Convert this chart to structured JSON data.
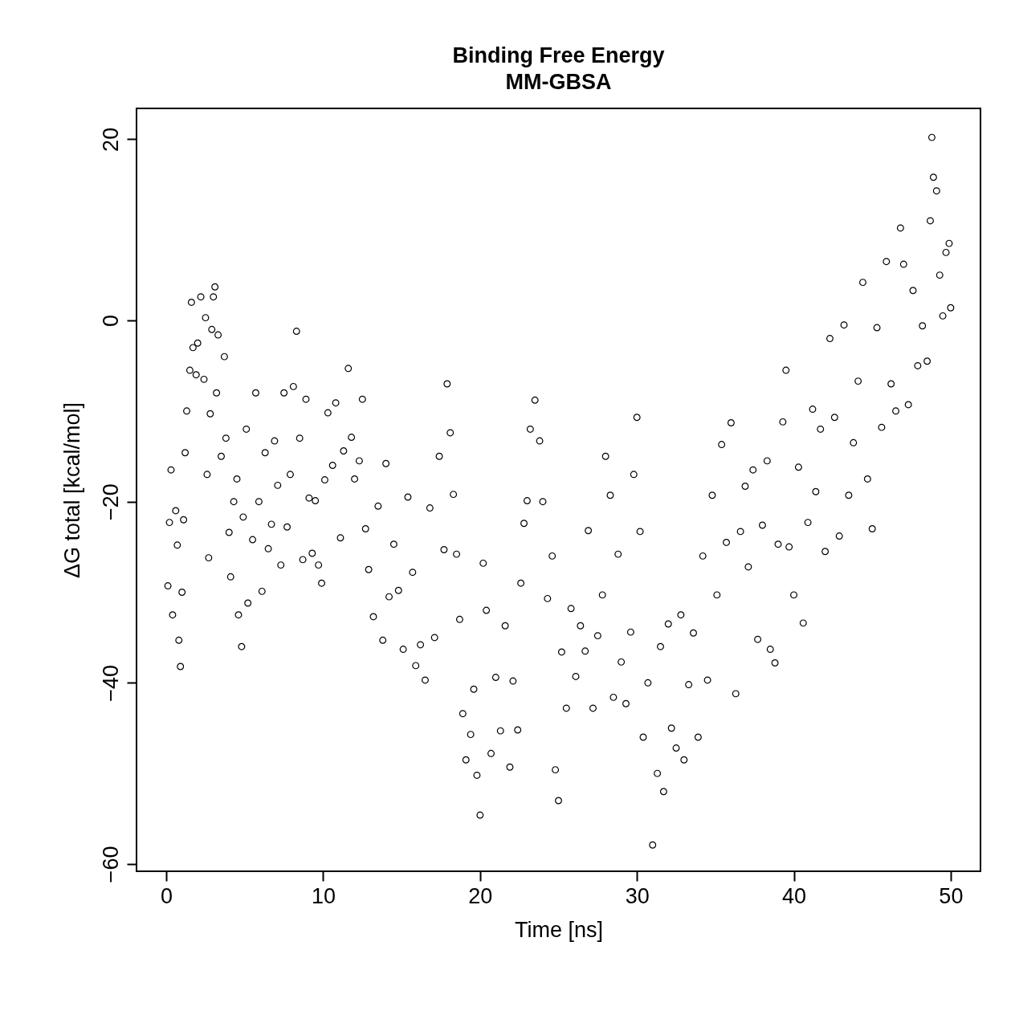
{
  "chart_data": {
    "type": "scatter",
    "title": "Binding Free Energy",
    "subtitle": "MM-GBSA",
    "xlabel": "Time [ns]",
    "ylabel": "ΔG total [kcal/mol]",
    "xlim": [
      -1.9,
      51.9
    ],
    "ylim": [
      -60.8,
      23.4
    ],
    "xticks": [
      0,
      10,
      20,
      30,
      40,
      50
    ],
    "yticks": [
      -60,
      -40,
      -20,
      0,
      20
    ],
    "marker": "circle",
    "series": [
      {
        "color": "#000000",
        "x": [
          0.1,
          0.2,
          0.3,
          0.4,
          0.6,
          0.7,
          0.8,
          0.9,
          1.0,
          1.1,
          1.2,
          1.3,
          1.5,
          1.6,
          1.7,
          1.9,
          2.0,
          2.2,
          2.4,
          2.5,
          2.6,
          2.7,
          2.8,
          2.9,
          3.0,
          3.1,
          3.2,
          3.3,
          3.5,
          3.7,
          3.8,
          4.0,
          4.1,
          4.3,
          4.5,
          4.6,
          4.8,
          4.9,
          5.1,
          5.2,
          5.5,
          5.7,
          5.9,
          6.1,
          6.3,
          6.5,
          6.7,
          6.9,
          7.1,
          7.3,
          7.5,
          7.7,
          7.9,
          8.1,
          8.3,
          8.5,
          8.7,
          8.9,
          9.1,
          9.3,
          9.5,
          9.7,
          9.9,
          10.1,
          10.3,
          10.6,
          10.8,
          11.1,
          11.3,
          11.6,
          11.8,
          12.0,
          12.3,
          12.5,
          12.7,
          12.9,
          13.2,
          13.5,
          13.8,
          14.0,
          14.2,
          14.5,
          14.8,
          15.1,
          15.4,
          15.7,
          15.9,
          16.2,
          16.5,
          16.8,
          17.1,
          17.4,
          17.7,
          17.9,
          18.1,
          18.3,
          18.5,
          18.7,
          18.9,
          19.1,
          19.4,
          19.6,
          19.8,
          20.0,
          20.2,
          20.4,
          20.7,
          21.0,
          21.3,
          21.6,
          21.9,
          22.1,
          22.4,
          22.6,
          22.8,
          23.0,
          23.2,
          23.5,
          23.8,
          24.0,
          24.3,
          24.6,
          24.8,
          25.0,
          25.2,
          25.5,
          25.8,
          26.1,
          26.4,
          26.7,
          26.9,
          27.2,
          27.5,
          27.8,
          28.0,
          28.3,
          28.5,
          28.8,
          29.0,
          29.3,
          29.6,
          29.8,
          30.0,
          30.2,
          30.4,
          30.7,
          31.0,
          31.3,
          31.5,
          31.7,
          32.0,
          32.2,
          32.5,
          32.8,
          33.0,
          33.3,
          33.6,
          33.9,
          34.2,
          34.5,
          34.8,
          35.1,
          35.4,
          35.7,
          36.0,
          36.3,
          36.6,
          36.9,
          37.1,
          37.4,
          37.7,
          38.0,
          38.3,
          38.5,
          38.8,
          39.0,
          39.3,
          39.5,
          39.7,
          40.0,
          40.3,
          40.6,
          40.9,
          41.2,
          41.4,
          41.7,
          42.0,
          42.3,
          42.6,
          42.9,
          43.2,
          43.5,
          43.8,
          44.1,
          44.4,
          44.7,
          45.0,
          45.3,
          45.6,
          45.9,
          46.2,
          46.5,
          46.8,
          47.0,
          47.3,
          47.6,
          47.9,
          48.2,
          48.5,
          48.7,
          48.8,
          48.9,
          49.1,
          49.3,
          49.5,
          49.7,
          49.9,
          50.0
        ],
        "values": [
          -29.3,
          -22.3,
          -16.5,
          -32.5,
          -21,
          -24.8,
          -35.3,
          -38.2,
          -30,
          -22,
          -14.6,
          -10,
          -5.5,
          2,
          -3,
          -6,
          -2.5,
          2.6,
          -6.5,
          0.3,
          -17,
          -26.2,
          -10.3,
          -1,
          2.6,
          3.7,
          -8,
          -1.6,
          -15,
          -4,
          -13,
          -23.4,
          -28.3,
          -20,
          -17.5,
          -32.5,
          -36,
          -21.7,
          -12,
          -31.2,
          -24.2,
          -8,
          -20,
          -29.9,
          -14.6,
          -25.2,
          -22.5,
          -13.3,
          -18.2,
          -27,
          -8,
          -22.8,
          -17,
          -7.3,
          -1.2,
          -13,
          -26.4,
          -8.7,
          -19.6,
          -25.7,
          -19.9,
          -27,
          -29,
          -17.6,
          -10.2,
          -16,
          -9.1,
          -24,
          -14.4,
          -5.3,
          -12.9,
          -17.5,
          -15.5,
          -8.7,
          -23,
          -27.5,
          -32.7,
          -20.5,
          -35.3,
          -15.8,
          -30.5,
          -24.7,
          -29.8,
          -36.3,
          -19.5,
          -27.8,
          -38.1,
          -35.8,
          -39.7,
          -20.7,
          -35,
          -15,
          -25.3,
          -7,
          -12.4,
          -19.2,
          -25.8,
          -33,
          -43.4,
          -48.5,
          -45.7,
          -40.7,
          -50.2,
          -54.6,
          -26.8,
          -32,
          -47.8,
          -39.4,
          -45.3,
          -33.7,
          -49.3,
          -39.8,
          -45.2,
          -29,
          -22.4,
          -19.9,
          -12,
          -8.8,
          -13.3,
          -20,
          -30.7,
          -26,
          -49.6,
          -53,
          -36.6,
          -42.8,
          -31.8,
          -39.3,
          -33.7,
          -36.5,
          -23.2,
          -42.8,
          -34.8,
          -30.3,
          -15,
          -19.3,
          -41.6,
          -25.8,
          -37.7,
          -42.3,
          -34.4,
          -17,
          -10.7,
          -23.3,
          -46,
          -40,
          -57.9,
          -50,
          -36,
          -52,
          -33.5,
          -45,
          -47.2,
          -32.5,
          -48.5,
          -40.2,
          -34.5,
          -46,
          -26,
          -39.7,
          -19.3,
          -30.3,
          -13.7,
          -24.5,
          -11.3,
          -41.2,
          -23.3,
          -18.3,
          -27.2,
          -16.5,
          -35.2,
          -22.6,
          -15.5,
          -36.3,
          -37.8,
          -24.7,
          -11.2,
          -5.5,
          -25,
          -30.3,
          -16.2,
          -33.4,
          -22.3,
          -9.8,
          -18.9,
          -12,
          -25.5,
          -2,
          -10.7,
          -23.8,
          -0.5,
          -19.3,
          -13.5,
          -6.7,
          4.2,
          -17.5,
          -23,
          -0.8,
          -11.8,
          6.5,
          -7,
          -10,
          10.2,
          6.2,
          -9.3,
          3.3,
          -5,
          -0.6,
          -4.5,
          11,
          20.2,
          15.8,
          14.3,
          5,
          0.5,
          7.5,
          8.5,
          1.4
        ]
      }
    ]
  }
}
